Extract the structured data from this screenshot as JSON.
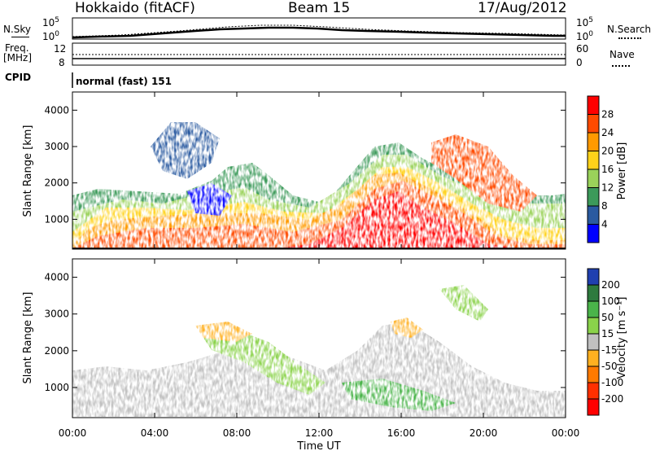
{
  "header": {
    "station": "Hokkaido (fitACF)",
    "beam": "Beam 15",
    "date": "17/Aug/2012"
  },
  "top_panels": {
    "nsky_label": "N.Sky",
    "nsearch_label": "N.Search",
    "count_ticks": [
      "10^5",
      "10^0"
    ],
    "freq_label_1": "Freq.",
    "freq_label_2": "[MHz]",
    "freq_ticks": [
      "12",
      "8"
    ],
    "nave_label": "Nave",
    "nave_ticks": [
      "60",
      "0"
    ],
    "cpid_label": "CPID",
    "cpid_value": "normal (fast) 151"
  },
  "chart_data": [
    {
      "type": "heatmap",
      "name": "power",
      "ylabel": "Slant Range [km]",
      "xlabel": "Time UT",
      "x_ticks": [
        "00:00",
        "04:00",
        "08:00",
        "12:00",
        "16:00",
        "20:00",
        "00:00"
      ],
      "xlim_hours": [
        0,
        24
      ],
      "y_ticks": [
        1000,
        2000,
        3000,
        4000
      ],
      "ylim": [
        180,
        4500
      ],
      "colorbar": {
        "label": "Power [dB]",
        "ticks": [
          "28",
          "24",
          "20",
          "16",
          "12",
          "8",
          "4"
        ],
        "colors": [
          "#ff0000",
          "#ff4a00",
          "#ff9a00",
          "#ffd21a",
          "#9ad25a",
          "#3c9a5a",
          "#2a5aa0",
          "#0000ff"
        ]
      }
    },
    {
      "type": "heatmap",
      "name": "velocity",
      "ylabel": "Slant Range [km]",
      "xlabel": "Time UT",
      "x_ticks": [
        "00:00",
        "04:00",
        "08:00",
        "12:00",
        "16:00",
        "20:00",
        "00:00"
      ],
      "xlim_hours": [
        0,
        24
      ],
      "y_ticks": [
        1000,
        2000,
        3000,
        4000
      ],
      "ylim": [
        180,
        4500
      ],
      "colorbar": {
        "label": "Velocity [m s⁻¹]",
        "ticks": [
          "200",
          "100",
          "50",
          "15",
          "-15",
          "-50",
          "-100",
          "-200"
        ],
        "colors": [
          "#2040b0",
          "#2e7a3e",
          "#4ab44a",
          "#8ad24a",
          "#c0c0c0",
          "#ffb020",
          "#ff7a00",
          "#ff3000",
          "#ff0000"
        ]
      }
    }
  ]
}
